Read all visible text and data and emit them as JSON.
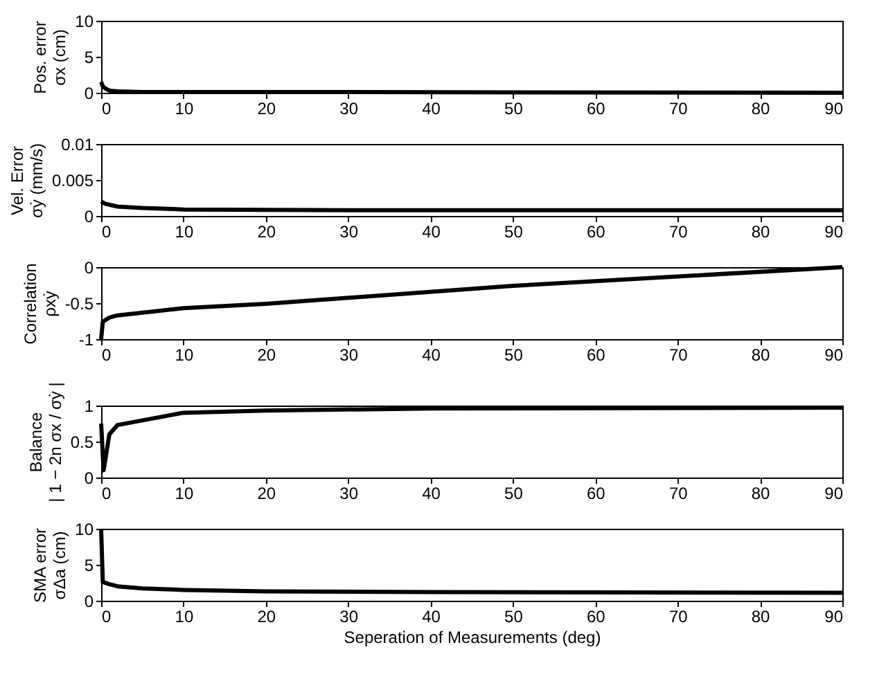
{
  "chart_data": [
    {
      "type": "line",
      "ylabel": "Pos. error\nσx (cm)",
      "xlim": [
        0,
        90
      ],
      "xticks": [
        0,
        10,
        20,
        30,
        40,
        50,
        60,
        70,
        80,
        90
      ],
      "ylim": [
        0,
        10
      ],
      "yticks": [
        0,
        5,
        10
      ],
      "grid": false,
      "series": [
        {
          "color": "#000000",
          "x": [
            0,
            0.2,
            0.5,
            1,
            2,
            5,
            20,
            90
          ],
          "values": [
            1.5,
            0.9,
            0.6,
            0.3,
            0.2,
            0.1,
            0.1,
            0
          ]
        }
      ]
    },
    {
      "type": "line",
      "ylabel": "Vel. Error\nσẏ (mm/s)",
      "xlim": [
        0,
        90
      ],
      "xticks": [
        0,
        10,
        20,
        30,
        40,
        50,
        60,
        70,
        80,
        90
      ],
      "ylim": [
        0,
        0.01
      ],
      "yticks": [
        0,
        0.005,
        0.01
      ],
      "grid": false,
      "series": [
        {
          "color": "#000000",
          "x": [
            0,
            0.5,
            2,
            5,
            10,
            30,
            90
          ],
          "values": [
            0.002,
            0.0017,
            0.0013,
            0.0011,
            0.0009,
            0.0008,
            0.0008
          ]
        }
      ]
    },
    {
      "type": "line",
      "ylabel": "Correlation\nρxẏ",
      "xlim": [
        0,
        90
      ],
      "xticks": [
        0,
        10,
        20,
        30,
        40,
        50,
        60,
        70,
        80,
        90
      ],
      "ylim": [
        -1,
        0
      ],
      "yticks": [
        -1,
        -0.5,
        0
      ],
      "grid": false,
      "series": [
        {
          "color": "#000000",
          "x": [
            0,
            0.2,
            1,
            2,
            10,
            20,
            50,
            90
          ],
          "values": [
            -1,
            -0.76,
            -0.7,
            -0.67,
            -0.57,
            -0.51,
            -0.26,
            0
          ]
        }
      ]
    },
    {
      "type": "line",
      "ylabel": "Balance\n| 1 − 2n σx / σẏ |",
      "xlim": [
        0,
        90
      ],
      "xticks": [
        0,
        10,
        20,
        30,
        40,
        50,
        60,
        70,
        80,
        90
      ],
      "ylim": [
        0,
        1
      ],
      "yticks": [
        0,
        0.5,
        1
      ],
      "grid": false,
      "series": [
        {
          "color": "#000000",
          "x": [
            0,
            0.3,
            1,
            2,
            10,
            20,
            40,
            90
          ],
          "values": [
            0.75,
            0.1,
            0.6,
            0.73,
            0.9,
            0.93,
            0.96,
            0.97
          ]
        }
      ]
    },
    {
      "type": "line",
      "ylabel": "SMA error\nσΔa (cm)",
      "xlabel": "Seperation of Measurements (deg)",
      "xlim": [
        0,
        90
      ],
      "xticks": [
        0,
        10,
        20,
        30,
        40,
        50,
        60,
        70,
        80,
        90
      ],
      "ylim": [
        0,
        10
      ],
      "yticks": [
        0,
        5,
        10
      ],
      "grid": false,
      "series": [
        {
          "color": "#000000",
          "x": [
            0,
            0.2,
            1,
            2,
            5,
            10,
            20,
            40,
            90
          ],
          "values": [
            10,
            2.6,
            2.3,
            2,
            1.7,
            1.5,
            1.3,
            1.2,
            1.1
          ]
        }
      ]
    }
  ]
}
